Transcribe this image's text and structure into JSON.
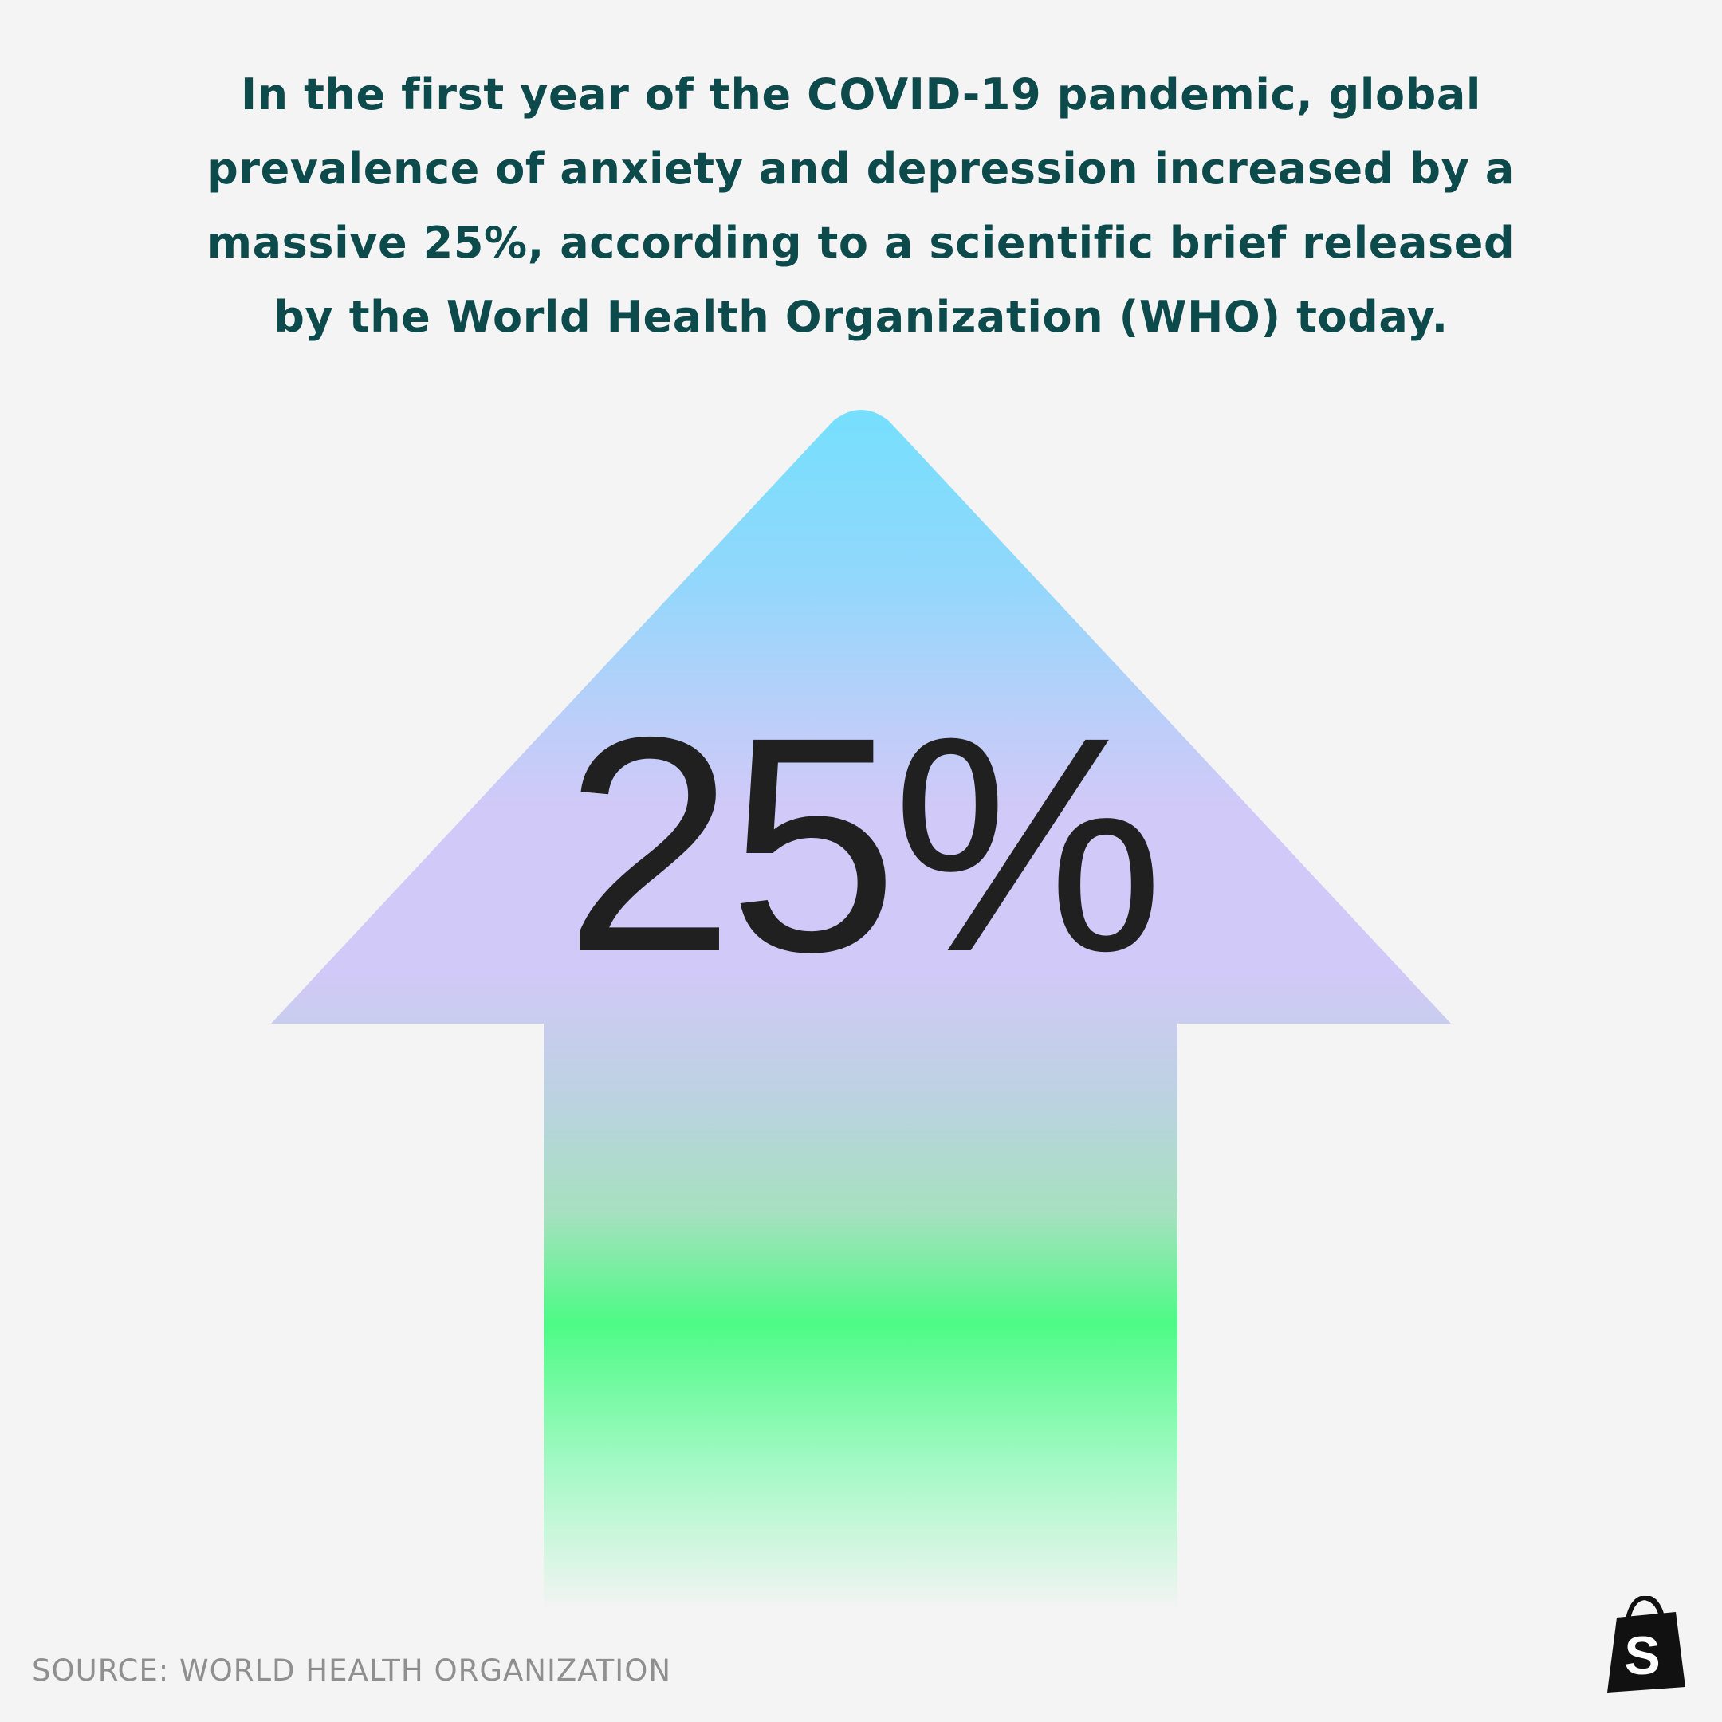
{
  "headline": "In the first year of the COVID-19 pandemic, global prevalence of anxiety and depression increased by a massive 25%, according to a scientific brief released by the World Health Organization (WHO) today.",
  "stat": {
    "value": "25%",
    "direction": "up"
  },
  "colors": {
    "background": "#f4f4f4",
    "headline": "#0d4a4c",
    "stat_text": "#202020",
    "source_text": "#8f8f8f",
    "arrow_top": "#76dffd",
    "arrow_middle": "#d1c9f7",
    "arrow_green": "#4dfb85",
    "logo": "#111111"
  },
  "source": "SOURCE: WORLD HEALTH ORGANIZATION",
  "logo": {
    "icon": "shopping-bag-icon",
    "glyph": "S"
  }
}
